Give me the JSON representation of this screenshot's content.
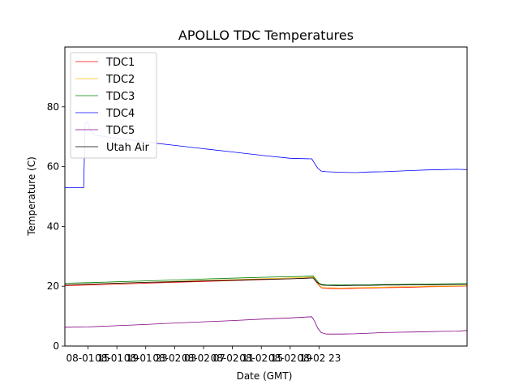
{
  "chart_data": {
    "type": "line",
    "title": "APOLLO TDC Temperatures",
    "xlabel": "Date (GMT)",
    "ylabel": "Temperature (C)",
    "xlim": [
      11.8,
      67.5
    ],
    "ylim": [
      0,
      100
    ],
    "x_unit": "hours since 08-01 00:00 GMT",
    "x_ticks": [
      15,
      19,
      23,
      27,
      31,
      35,
      39,
      43,
      47
    ],
    "x_tick_labels": [
      "08-01 15",
      "08-01 19",
      "08-01 23",
      "08-02 03",
      "08-02 07",
      "08-02 11",
      "08-02 15",
      "08-02 19",
      "08-02 23"
    ],
    "y_ticks": [
      0,
      20,
      40,
      60,
      80
    ],
    "y_tick_labels": [
      "0",
      "20",
      "40",
      "60",
      "80"
    ],
    "grid": false,
    "legend_position": "top-left",
    "series": [
      {
        "name": "TDC1",
        "color": "#ff0000",
        "x": [
          11.8,
          15,
          19,
          23,
          27,
          31,
          35,
          39,
          43,
          46.2,
          46.6,
          47.0,
          47.4,
          48,
          50,
          52,
          54,
          56,
          58,
          60,
          62,
          64,
          66,
          67.5
        ],
        "y": [
          20.2,
          20.4,
          20.7,
          21.0,
          21.3,
          21.6,
          21.9,
          22.2,
          22.5,
          22.8,
          21.5,
          20.2,
          19.4,
          19.3,
          19.2,
          19.3,
          19.4,
          19.5,
          19.6,
          19.7,
          19.8,
          19.9,
          20.0,
          20.1
        ]
      },
      {
        "name": "TDC2",
        "color": "#ffc000",
        "x": [
          11.8,
          15,
          19,
          23,
          27,
          31,
          35,
          39,
          43,
          46.2,
          46.6,
          47.0,
          47.4,
          48,
          50,
          52,
          54,
          56,
          58,
          60,
          62,
          64,
          66,
          67.5
        ],
        "y": [
          20.5,
          20.7,
          21.0,
          21.3,
          21.6,
          21.9,
          22.2,
          22.5,
          22.8,
          23.1,
          21.8,
          20.4,
          19.6,
          19.5,
          19.4,
          19.5,
          19.6,
          19.7,
          19.8,
          19.9,
          20.0,
          20.0,
          20.1,
          20.2
        ]
      },
      {
        "name": "TDC3",
        "color": "#008000",
        "x": [
          11.8,
          15,
          19,
          23,
          27,
          31,
          35,
          39,
          43,
          46.2,
          46.6,
          47.0,
          47.4,
          48,
          50,
          52,
          54,
          56,
          58,
          60,
          62,
          64,
          66,
          67.5
        ],
        "y": [
          21.0,
          21.2,
          21.5,
          21.8,
          22.1,
          22.4,
          22.7,
          23.0,
          23.2,
          23.4,
          22.2,
          21.0,
          20.6,
          20.5,
          20.4,
          20.5,
          20.5,
          20.6,
          20.6,
          20.7,
          20.7,
          20.8,
          20.8,
          20.9
        ]
      },
      {
        "name": "TDC4",
        "color": "#0000ff",
        "x": [
          11.8,
          13,
          14.4,
          14.6,
          15,
          15.3,
          15.6,
          16,
          17,
          19,
          23,
          27,
          31,
          35,
          39,
          43,
          46.0,
          46.4,
          46.8,
          47.3,
          48,
          50,
          52,
          54,
          56,
          58,
          60,
          62,
          64,
          66,
          67.5
        ],
        "y": [
          53.0,
          53.0,
          53.0,
          74.5,
          75.0,
          72.0,
          71.5,
          70.5,
          70.2,
          69.5,
          68.2,
          67.1,
          66.0,
          64.9,
          63.8,
          62.8,
          62.6,
          61.0,
          59.5,
          58.5,
          58.3,
          58.1,
          58.0,
          58.2,
          58.3,
          58.5,
          58.7,
          58.9,
          59.0,
          59.1,
          59.0
        ]
      },
      {
        "name": "TDC5",
        "color": "#800080",
        "x": [
          11.8,
          15,
          19,
          23,
          27,
          31,
          35,
          39,
          43,
          46.0,
          46.4,
          46.8,
          47.3,
          48,
          50,
          52,
          54,
          56,
          58,
          60,
          62,
          64,
          66,
          67.5
        ],
        "y": [
          6.3,
          6.4,
          6.8,
          7.2,
          7.7,
          8.1,
          8.5,
          9.0,
          9.4,
          9.8,
          8.2,
          6.0,
          4.5,
          4.0,
          4.0,
          4.1,
          4.3,
          4.5,
          4.6,
          4.7,
          4.8,
          4.9,
          5.0,
          5.2
        ]
      },
      {
        "name": "Utah Air",
        "color": "#000000",
        "x": [
          11.8,
          15,
          19,
          23,
          27,
          31,
          35,
          39,
          43,
          46.2,
          46.6,
          47.0,
          47.4,
          48,
          50,
          52,
          54,
          56,
          58,
          60,
          62,
          64,
          66,
          67.5
        ],
        "y": [
          20.5,
          20.7,
          21.0,
          21.3,
          21.5,
          21.8,
          22.0,
          22.3,
          22.5,
          22.8,
          21.6,
          20.8,
          20.4,
          20.3,
          20.2,
          20.3,
          20.3,
          20.4,
          20.4,
          20.5,
          20.5,
          20.5,
          20.6,
          20.6
        ]
      }
    ]
  }
}
